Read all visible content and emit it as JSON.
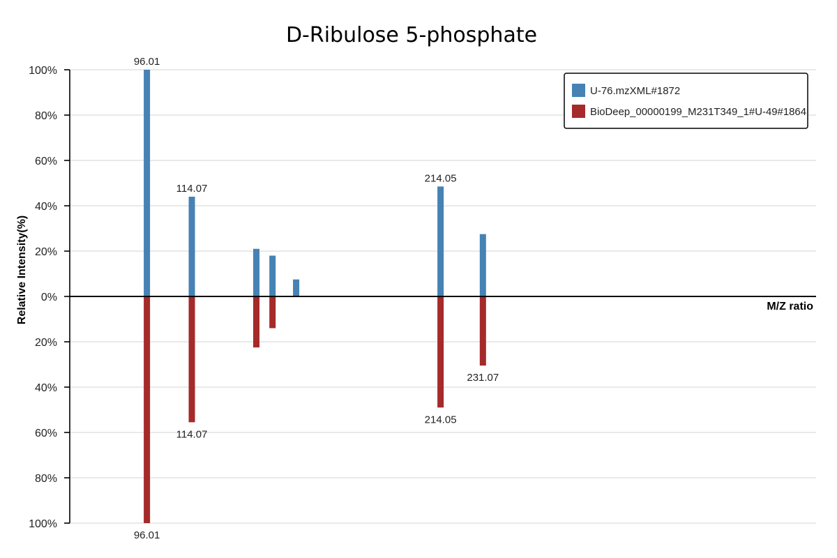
{
  "chart_data": {
    "type": "bar",
    "subtype": "mirror spectrum",
    "title": "D-Ribulose 5-phosphate",
    "xlabel": "M/Z ratio",
    "ylabel": "Relative Intensity(%)",
    "y_ticks_top": [
      "100%",
      "80%",
      "60%",
      "40%",
      "20%",
      "0%"
    ],
    "y_ticks_bottom": [
      "20%",
      "40%",
      "60%",
      "80%",
      "100%"
    ],
    "ylim": [
      -100,
      100
    ],
    "xlim": [
      65,
      365
    ],
    "grid": true,
    "legend_position": "top-right",
    "series": [
      {
        "name": "U-76.mzXML#1872",
        "color": "#4682b4",
        "direction": "up",
        "peaks": [
          {
            "mz": 96.01,
            "intensity": 100,
            "label": "96.01"
          },
          {
            "mz": 114.07,
            "intensity": 44,
            "label": "114.07"
          },
          {
            "mz": 140.0,
            "intensity": 21
          },
          {
            "mz": 146.5,
            "intensity": 18
          },
          {
            "mz": 156.0,
            "intensity": 7.5
          },
          {
            "mz": 214.05,
            "intensity": 48.5,
            "label": "214.05"
          },
          {
            "mz": 231.07,
            "intensity": 27.5
          }
        ]
      },
      {
        "name": "BioDeep_00000199_M231T349_1#U-49#1864",
        "color": "#a52a2a",
        "direction": "down",
        "peaks": [
          {
            "mz": 96.01,
            "intensity": 100,
            "label": "96.01"
          },
          {
            "mz": 114.07,
            "intensity": 55.5,
            "label": "114.07"
          },
          {
            "mz": 140.0,
            "intensity": 22.5
          },
          {
            "mz": 146.5,
            "intensity": 14
          },
          {
            "mz": 214.05,
            "intensity": 49,
            "label": "214.05"
          },
          {
            "mz": 231.07,
            "intensity": 30.5,
            "label": "231.07"
          }
        ]
      }
    ]
  }
}
